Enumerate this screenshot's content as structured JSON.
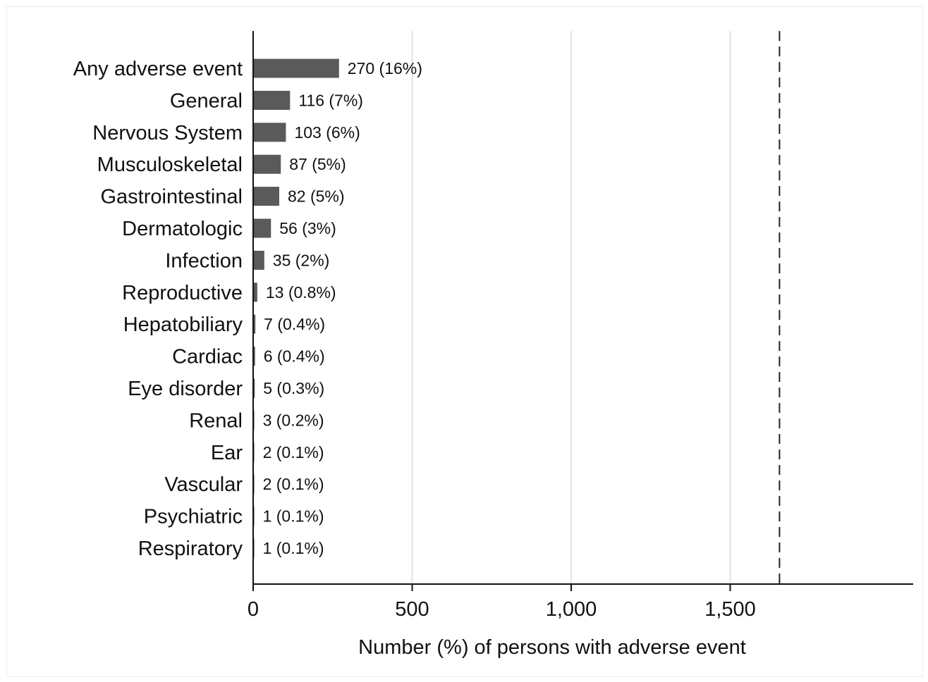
{
  "chart_data": {
    "type": "bar",
    "orientation": "horizontal",
    "title": "",
    "xlabel": "Number (%) of persons with adverse event",
    "ylabel": "",
    "xlim": [
      0,
      2080
    ],
    "xticks": [
      0,
      500,
      1000,
      1500
    ],
    "xtick_labels": [
      "0",
      "500",
      "1,000",
      "1,500"
    ],
    "grid": "vertical gridlines at x ticks",
    "reference_line": {
      "x": 1655,
      "style": "dashed"
    },
    "bar_color": "#5a5a5a",
    "categories": [
      "Any adverse event",
      "General",
      "Nervous System",
      "Musculoskeletal",
      "Gastrointestinal",
      "Dermatologic",
      "Infection",
      "Reproductive",
      "Hepatobiliary",
      "Cardiac",
      "Eye disorder",
      "Renal",
      "Ear",
      "Vascular",
      "Psychiatric",
      "Respiratory"
    ],
    "values": [
      270,
      116,
      103,
      87,
      82,
      56,
      35,
      13,
      7,
      6,
      5,
      3,
      2,
      2,
      1,
      1
    ],
    "data_labels": [
      "270 (16%)",
      "116 (7%)",
      "103 (6%)",
      "87 (5%)",
      "82 (5%)",
      "56 (3%)",
      "35 (2%)",
      "13 (0.8%)",
      "7 (0.4%)",
      "6 (0.4%)",
      "5 (0.3%)",
      "3 (0.2%)",
      "2 (0.1%)",
      "2 (0.1%)",
      "1 (0.1%)",
      "1 (0.1%)"
    ]
  }
}
